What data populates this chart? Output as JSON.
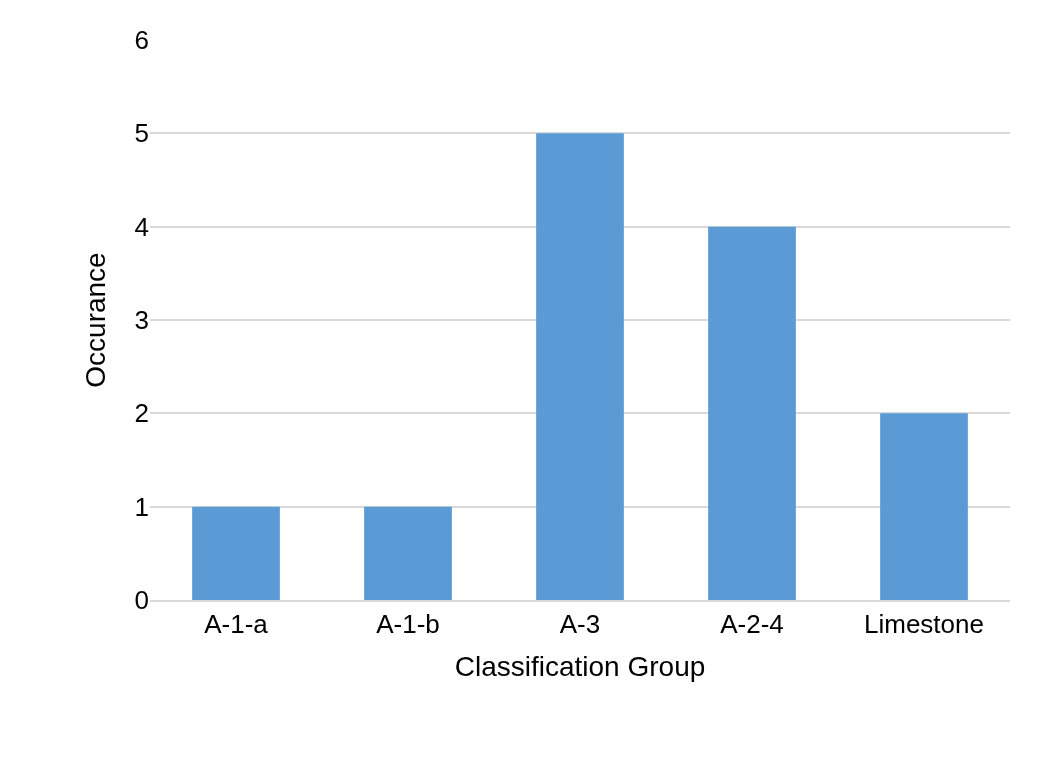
{
  "chart_data": {
    "type": "bar",
    "xlabel": "Classification Group",
    "ylabel": "Occurance",
    "categories": [
      "A-1-a",
      "A-1-b",
      "A-3",
      "A-2-4",
      "Limestone"
    ],
    "values": [
      1,
      1,
      5,
      4,
      2
    ],
    "color": "#5b9bd5",
    "ylim": [
      0,
      6
    ],
    "yticks": [
      0,
      1,
      2,
      3,
      4,
      5,
      6
    ],
    "grid": "y",
    "legend": false
  }
}
